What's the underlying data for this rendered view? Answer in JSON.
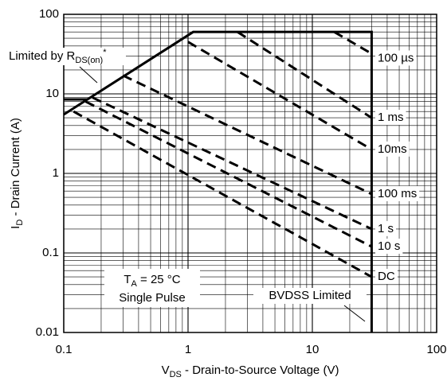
{
  "chart_data": {
    "type": "line",
    "log_x": true,
    "log_y": true,
    "grid": true,
    "minor_grid": true,
    "xlim": [
      0.1,
      100
    ],
    "ylim": [
      0.01,
      100
    ],
    "xticks": [
      0.1,
      1,
      10,
      100
    ],
    "yticks": [
      0.01,
      0.1,
      1,
      10,
      100
    ],
    "x_label": [
      "V",
      "DS",
      " - Drain-to-Source Voltage (V)"
    ],
    "y_label": [
      "I",
      "D",
      " - Drain Current (A)"
    ],
    "limit_lines": [
      {
        "x": [
          0.1,
          1.1,
          30,
          30
        ],
        "values": [
          5.5,
          60,
          60,
          0.01
        ]
      },
      {
        "x": [
          0.1,
          0.155
        ],
        "values": [
          8.5,
          8.5
        ]
      }
    ],
    "series": [
      {
        "name": "100 µs",
        "color": "#000000",
        "x": [
          15,
          30
        ],
        "values": [
          60,
          32
        ]
      },
      {
        "name": "1 ms",
        "color": "#000000",
        "x": [
          2.5,
          30
        ],
        "values": [
          60,
          5
        ]
      },
      {
        "name": "10ms",
        "color": "#000000",
        "x": [
          1.0,
          30
        ],
        "values": [
          45,
          2
        ]
      },
      {
        "name": "100 ms",
        "color": "#000000",
        "x": [
          0.3,
          30
        ],
        "values": [
          17,
          0.55
        ]
      },
      {
        "name": "1 s",
        "color": "#000000",
        "x": [
          0.17,
          30
        ],
        "values": [
          9,
          0.2
        ]
      },
      {
        "name": "10 s",
        "color": "#000000",
        "x": [
          0.15,
          30
        ],
        "values": [
          8,
          0.12
        ]
      },
      {
        "name": "DC",
        "color": "#000000",
        "x": [
          0.12,
          30
        ],
        "values": [
          6,
          0.05
        ]
      }
    ],
    "annotations": {
      "rds_limit": [
        "Limited by R",
        "DS(on)",
        "*"
      ],
      "temperature": [
        "T",
        "A",
        " = 25 °C"
      ],
      "pulse": "Single Pulse",
      "bvdss": "BVDSS Limited"
    }
  }
}
